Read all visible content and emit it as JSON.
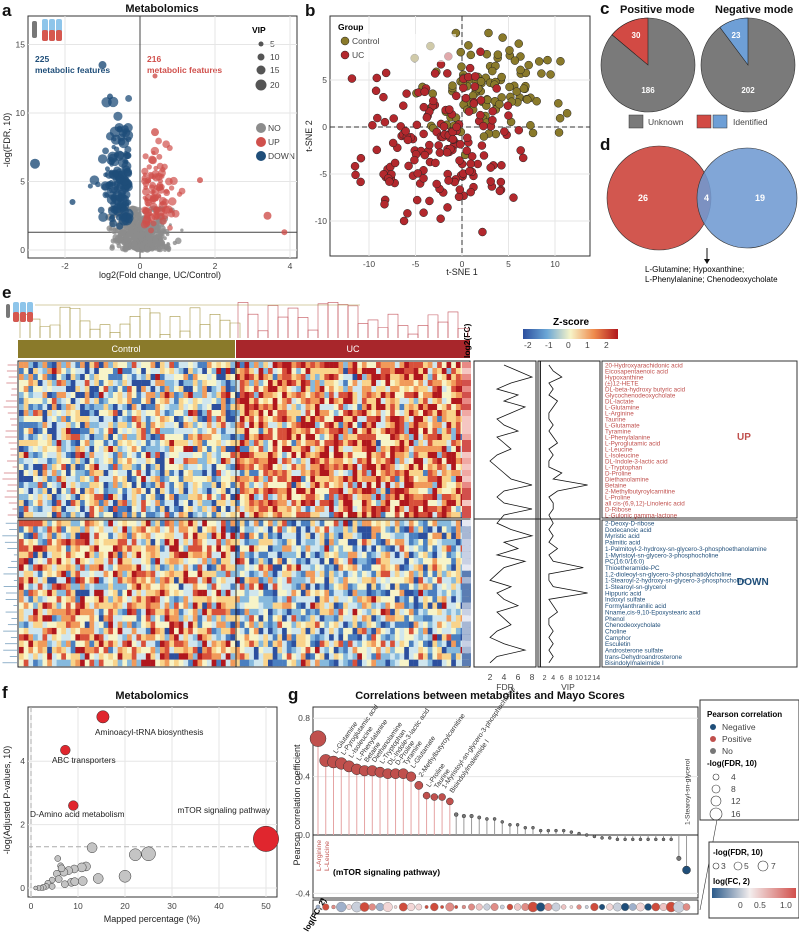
{
  "colors": {
    "up": "#d0504c",
    "down": "#1f4e79",
    "no": "#8c8c8c",
    "control": "#8a7a2a",
    "uc": "#b3282d",
    "positive": "#d24a44",
    "negative": "#6e9fd6",
    "unknown": "#7a7a7a"
  },
  "panels": {
    "a": "a",
    "b": "b",
    "c": "c",
    "d": "d",
    "e": "e",
    "f": "f",
    "g": "g"
  },
  "chart_data": [
    {
      "panel": "a",
      "type": "scatter",
      "title": "Metabolomics",
      "xlabel": "log2(Fold change, UC/Control)",
      "ylabel": "-log(FDR, 10)",
      "xlim": [
        -3,
        4.2
      ],
      "ylim": [
        -0.6,
        17
      ],
      "xticks": [
        "-2",
        "0",
        "2",
        "4"
      ],
      "yticks": [
        "0",
        "5",
        "10",
        "15"
      ],
      "annotations": {
        "down_count": "225",
        "down_text": "metabolic features",
        "up_count": "216",
        "up_text": "metabolic features"
      },
      "legend_size_title": "VIP",
      "legend_sizes": [
        "5",
        "10",
        "15",
        "20"
      ],
      "legend_groups": [
        "NO",
        "UP",
        "DOWN"
      ],
      "thresholds": {
        "y": 1.3,
        "x": 0
      }
    },
    {
      "panel": "b",
      "type": "scatter",
      "xlabel": "t-SNE 1",
      "ylabel": "t-SNE 2",
      "xlim": [
        -14,
        14
      ],
      "ylim": [
        -13.5,
        12
      ],
      "xticks": [
        "-10",
        "-5",
        "0",
        "5",
        "10"
      ],
      "yticks": [
        "5",
        "0",
        "-5",
        "-10"
      ],
      "legend_title": "Group",
      "series": [
        {
          "name": "Control"
        },
        {
          "name": "UC"
        }
      ]
    },
    {
      "panel": "c",
      "type": "pie",
      "charts": [
        {
          "title": "Positive mode",
          "values": [
            {
              "label": "Identified",
              "value": 30
            },
            {
              "label": "Unknown",
              "value": 186
            }
          ]
        },
        {
          "title": "Negative mode",
          "values": [
            {
              "label": "Identified",
              "value": 23
            },
            {
              "label": "Unknown",
              "value": 202
            }
          ]
        }
      ],
      "legend": [
        "Unknown",
        "Identified"
      ]
    },
    {
      "panel": "d",
      "type": "venn",
      "left_only": "26",
      "overlap": "4",
      "right_only": "19",
      "overlap_note_1": "L-Glutamine; Hypoxanthine;",
      "overlap_note_2": "L-Phenylalanine; Chenodeoxycholate"
    },
    {
      "panel": "e",
      "type": "heatmap",
      "legend_title": "Z-score",
      "legend_ticks": [
        "-2",
        "-1",
        "0",
        "1",
        "2"
      ],
      "groups": [
        "Control",
        "UC"
      ],
      "fc_label": "log2(FC)",
      "fdr_label": "FDR",
      "vip_label": "VIP",
      "fdr_ticks": [
        "2",
        "4",
        "6",
        "8"
      ],
      "vip_ticks": [
        "2",
        "4",
        "6",
        "8",
        "10",
        "12",
        "14"
      ],
      "up_label": "UP",
      "down_label": "DOWN",
      "up": [
        "20-Hydroxyarachidonic acid",
        "Eicosapentaenoic acid",
        "Hypoxanthine",
        "(±)12-HETE",
        "DL-beta-hydroxy butyric acid",
        "Glycochenodeoxycholate",
        "DL-lactate",
        "L-Glutamine",
        "L-Arginine",
        "Taurine",
        "L-Glutamate",
        "Tyramine",
        "L-Phenylalanine",
        "L-Pyroglutamic acid",
        "L-Leucine",
        "L-Isoleucine",
        "DL-Indole-3-lactic acid",
        "L-Tryptophan",
        "D-Proline",
        "Diethanolamine",
        "Betaine",
        "2-Methylbutyroylcarnitine",
        "L-Proline",
        "all cis-(6,9,12)-Linolenic acid",
        "D-Ribose",
        "L-Gulonic gamma-lactone"
      ],
      "down": [
        "2-Deoxy-D-ribose",
        "Dodecanoic acid",
        "Myristic acid",
        "Palmitic acid",
        "1-Palmitoyl-2-hydroxy-sn-glycero-3-phosphoethanolamine",
        "1-Myristoyl-sn-glycero-3-phosphocholine",
        "PC(16:0/16:0)",
        "Thioetheramide-PC",
        "1,2-dioleoyl-sn-glycero-3-phosphatidylcholine",
        "1-Stearoyl-2-hydroxy-sn-glycero-3-phosphocholine",
        "1-Stearoyl-sn-glycerol",
        "Hippuric acid",
        "Indoxyl sulfate",
        "Formylanthranilic acid",
        "Nname,cis-9,10-Epoxystearic acid",
        "Phenol",
        "Chenodeoxycholate",
        "Choline",
        "Camphor",
        "Esculetin",
        "Androsterone sulfate",
        "trans-Dehydroandrosterone",
        "Bisindolylmaleimide I"
      ],
      "fdr": [
        4,
        6,
        8,
        5,
        3,
        6,
        4,
        7,
        5,
        3,
        4,
        6,
        3,
        4,
        5,
        3,
        2,
        3,
        4,
        5,
        8,
        4,
        3,
        4,
        8,
        4,
        3,
        5,
        8,
        4,
        6,
        3,
        7,
        4,
        3,
        2,
        5,
        3,
        4,
        6,
        3,
        4,
        5,
        3,
        2,
        4,
        7,
        3,
        2
      ],
      "vip": [
        3,
        4,
        6,
        3,
        4,
        3,
        5,
        4,
        3,
        3,
        4,
        3,
        4,
        5,
        3,
        4,
        3,
        3,
        6,
        4,
        12,
        5,
        3,
        4,
        4,
        3,
        4,
        3,
        4,
        3,
        5,
        3,
        4,
        11,
        3,
        3,
        4,
        12,
        3,
        4,
        5,
        3,
        3,
        4,
        3,
        4,
        3,
        4,
        3
      ]
    },
    {
      "panel": "f",
      "type": "scatter",
      "title": "Metabolomics",
      "xlabel": "Mapped percentage (%)",
      "ylabel": "-log(Adjusted P-values, 10)",
      "xlim": [
        -2,
        52
      ],
      "ylim": [
        -0.3,
        5.7
      ],
      "xticks": [
        "0",
        "10",
        "20",
        "30",
        "40",
        "50"
      ],
      "yticks": [
        "0",
        "2",
        "4"
      ],
      "threshold": 1.3,
      "labeled": [
        {
          "name": "Aminoacyl-tRNA biosynthesis",
          "x": 15.3,
          "y": 5.4,
          "size": 4
        },
        {
          "name": "ABC transporters",
          "x": 7.3,
          "y": 4.35,
          "size": 3
        },
        {
          "name": "D-Amino acid metabolism",
          "x": 9,
          "y": 2.6,
          "size": 3
        },
        {
          "name": "mTOR signaling pathway",
          "x": 50,
          "y": 1.55,
          "size": 9
        }
      ],
      "other": [
        [
          13,
          1.27,
          5
        ],
        [
          22.2,
          1.05,
          6
        ],
        [
          25,
          1.08,
          7
        ],
        [
          20,
          0.37,
          6
        ],
        [
          14.3,
          0.3,
          5
        ],
        [
          11,
          0.22,
          4.5
        ],
        [
          11.7,
          0.68,
          4.5
        ],
        [
          10.8,
          0.65,
          4.5
        ],
        [
          9.2,
          0.6,
          4
        ],
        [
          8,
          0.55,
          4
        ],
        [
          7,
          0.5,
          4
        ],
        [
          5.5,
          0.45,
          3.5
        ],
        [
          5.7,
          0.93,
          3
        ],
        [
          6.3,
          0.7,
          3
        ],
        [
          6.5,
          0.62,
          3.5
        ],
        [
          5.9,
          0.28,
          3.5
        ],
        [
          4.5,
          0.25,
          3
        ],
        [
          3.6,
          0.15,
          3
        ],
        [
          3.2,
          0.05,
          3
        ],
        [
          2.6,
          0.02,
          3
        ],
        [
          2.2,
          0,
          2.5
        ],
        [
          1.6,
          0,
          2.5
        ],
        [
          1,
          0,
          2
        ],
        [
          4.5,
          0.05,
          3
        ],
        [
          8.6,
          0.18,
          4
        ],
        [
          9.3,
          0.2,
          4
        ],
        [
          7.2,
          0.12,
          3.5
        ]
      ]
    },
    {
      "panel": "g",
      "type": "scatter",
      "title": "Correlations between metabolites and Mayo Scores",
      "ylabel": "Pearson correlation coefficient",
      "ylim": [
        -0.45,
        0.85
      ],
      "yticks": [
        "0.8",
        "0.4",
        "0.0",
        "-0.4"
      ],
      "strip_label": "log(FC, 2)",
      "annotation": "(mTOR signaling pathway)",
      "positive": [
        {
          "name": "L-Arginine",
          "r": 0.66
        },
        {
          "name": "L-Leucine",
          "r": 0.51
        },
        {
          "name": "L-Glutamine",
          "r": 0.5
        },
        {
          "name": "L-Pyroglutamic acid",
          "r": 0.49
        },
        {
          "name": "L-Isoleucine",
          "r": 0.47
        },
        {
          "name": "L-Phenylalanine",
          "r": 0.45
        },
        {
          "name": "Betaine",
          "r": 0.44
        },
        {
          "name": "Diethanolamine",
          "r": 0.44
        },
        {
          "name": "L-Tryptophan",
          "r": 0.43
        },
        {
          "name": "DL-Indole-3-lactic acid",
          "r": 0.42
        },
        {
          "name": "D-Proline",
          "r": 0.42
        },
        {
          "name": "Tyramine",
          "r": 0.42
        },
        {
          "name": "L-Glutamate",
          "r": 0.4
        },
        {
          "name": "2-Methylbutyroylcarnitine",
          "r": 0.34
        },
        {
          "name": "L-Proline",
          "r": 0.27
        },
        {
          "name": "Taurine",
          "r": 0.26
        },
        {
          "name": "1-Myristoyl-sn-glycero-3-phosphocholine",
          "r": 0.26
        },
        {
          "name": "Bisindolylmaleimide I",
          "r": 0.23
        }
      ],
      "no": [
        0.14,
        0.13,
        0.13,
        0.12,
        0.11,
        0.11,
        0.09,
        0.07,
        0.07,
        0.05,
        0.05,
        0.03,
        0.03,
        0.03,
        0.03,
        0.02,
        0.01,
        0,
        -0.01,
        -0.02,
        -0.02,
        -0.03,
        -0.03,
        -0.03,
        -0.03,
        -0.03,
        -0.03,
        -0.03,
        -0.03,
        -0.16
      ],
      "negative": [
        {
          "name": "1-Stearoyl-sn-glycerol",
          "r": -0.24
        }
      ],
      "legend": {
        "title": "Pearson correlation",
        "items": [
          "Negative",
          "Positive",
          "No"
        ],
        "size_title": "-log(FDR, 10)",
        "sizes": [
          "4",
          "8",
          "12",
          "16"
        ],
        "strip_size_title": "-log(FDR, 10)",
        "strip_sizes": [
          "3",
          "5",
          "7"
        ],
        "fc_title": "log(FC, 2)",
        "fc_ticks": [
          "0",
          "0.5",
          "1.0"
        ]
      }
    }
  ]
}
